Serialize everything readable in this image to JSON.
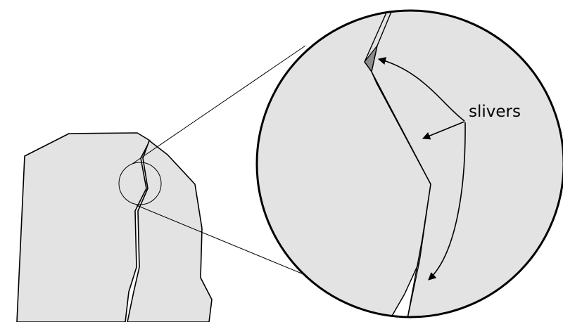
{
  "labels": {
    "slivers": "slivers"
  },
  "colors": {
    "polygon_fill": "#e3e3e3",
    "sliver_fill": "#8c8c8c",
    "gap_fill": "#ffffff",
    "stroke": "#000000"
  }
}
